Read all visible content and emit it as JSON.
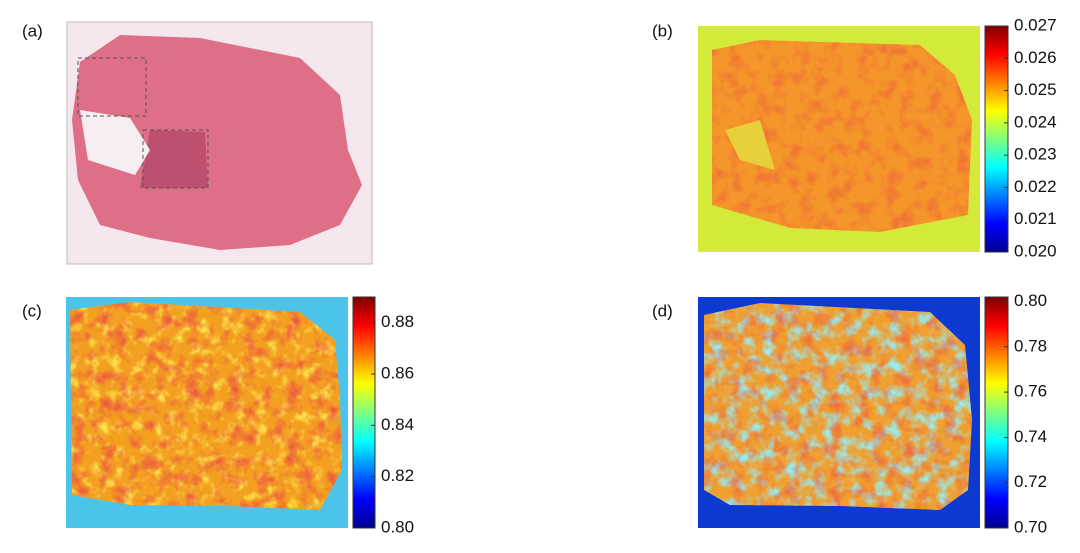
{
  "panels": [
    {
      "label": "(a)"
    },
    {
      "label": "(b)",
      "colormap": "jet",
      "ylim": [
        0.02,
        0.027
      ],
      "yticks": [
        {
          "value": 0.02,
          "label": "0.020"
        },
        0.021,
        0.022,
        0.023,
        0.024,
        0.025,
        0.026,
        0.027
      ]
    },
    {
      "label": "(c)",
      "colormap": "jet",
      "ylim": [
        0.8,
        0.89
      ],
      "yticks": [
        {
          "value": 0.8,
          "label": "0.80"
        },
        0.82,
        0.84,
        0.86,
        0.88
      ]
    },
    {
      "label": "(d)",
      "colormap": "jet",
      "ylim": [
        0.7,
        0.802
      ],
      "yticks": [
        {
          "value": 0.7,
          "label": "0.70"
        },
        0.72,
        0.74,
        0.76,
        0.78,
        {
          "value": 0.8,
          "label": "0.80"
        }
      ]
    }
  ]
}
